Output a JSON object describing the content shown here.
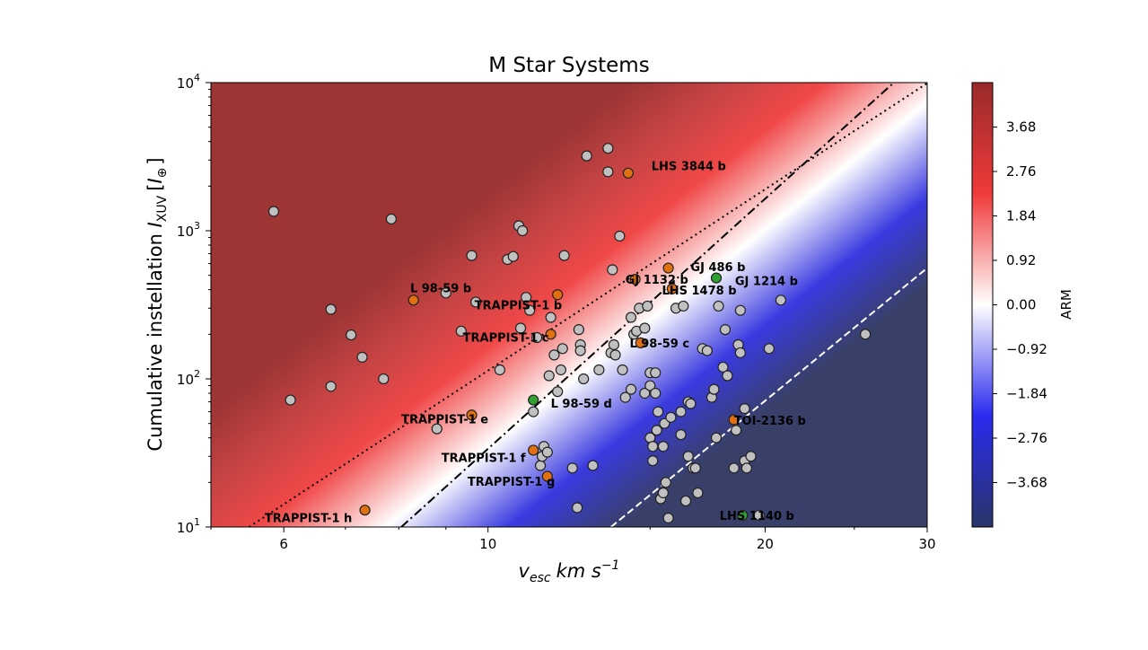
{
  "chart_data": {
    "type": "scatter",
    "title": "M Star Systems",
    "xlabel": "v_esc km s^-1",
    "xlabel_parts": {
      "var": "v",
      "sub": "esc",
      "unit": "km s",
      "exp": "−1"
    },
    "ylabel_parts": {
      "prefix": "Cumulative instellation ",
      "var": "I",
      "sub": "XUV",
      "bracket_open": "[",
      "unit": "I",
      "unit_sub": "⊕",
      "bracket_close": "]"
    },
    "x_scale": "log",
    "y_scale": "log",
    "xlim": [
      5,
      30
    ],
    "ylim": [
      10,
      10000
    ],
    "x_ticks": [
      {
        "value": 6,
        "label": "6"
      },
      {
        "value": 10,
        "label": "10"
      },
      {
        "value": 20,
        "label": "20"
      },
      {
        "value": 30,
        "label": "30"
      }
    ],
    "y_ticks": [
      {
        "value": 10,
        "base": "10",
        "exp": "1"
      },
      {
        "value": 100,
        "base": "10",
        "exp": "2"
      },
      {
        "value": 1000,
        "base": "10",
        "exp": "3"
      },
      {
        "value": 10000,
        "base": "10",
        "exp": "4"
      }
    ],
    "colorbar": {
      "label": "ARM",
      "range": [
        -4.6,
        4.6
      ],
      "ticks": [
        "3.68",
        "2.76",
        "1.84",
        "0.92",
        "0.00",
        "−0.92",
        "−1.84",
        "−2.76",
        "−3.68"
      ],
      "tick_values": [
        3.68,
        2.76,
        1.84,
        0.92,
        0.0,
        -0.92,
        -1.84,
        -2.76,
        -3.68
      ],
      "colors": {
        "high": "#9a2a2a",
        "mid": "#ffffff",
        "low": "#2a3a8a"
      }
    },
    "lines": [
      {
        "style": "dashdot",
        "color": "#000000",
        "x": [
          8.05,
          27.6
        ],
        "y": [
          10,
          10000
        ]
      },
      {
        "style": "dotted",
        "color": "#000000",
        "x": [
          5.5,
          30
        ],
        "y": [
          10,
          9900
        ]
      },
      {
        "style": "dashed",
        "color": "#ffffff",
        "x": [
          13.6,
          30
        ],
        "y": [
          10,
          560
        ]
      }
    ],
    "series": [
      {
        "color": "#c0c0c0",
        "x": [
          5.85,
          6.1,
          6.75,
          6.75,
          7.1,
          7.3,
          7.7,
          7.85,
          8.8,
          9.0,
          9.35,
          9.6,
          9.7,
          10.3,
          10.5,
          10.65,
          10.8,
          10.85,
          10.9,
          11.0,
          11.1,
          11.2,
          11.3,
          11.4,
          11.45,
          11.5,
          11.6,
          11.65,
          11.7,
          11.8,
          11.9,
          12.0,
          12.05,
          12.1,
          12.35,
          12.5,
          12.55,
          12.6,
          12.6,
          12.7,
          12.8,
          13.0,
          13.2,
          13.5,
          13.5,
          13.6,
          13.65,
          13.7,
          13.75,
          13.9,
          14.0,
          14.1,
          14.3,
          14.3,
          14.4,
          14.5,
          14.6,
          14.8,
          14.8,
          14.9,
          15.0,
          15.0,
          15.0,
          15.1,
          15.1,
          15.2,
          15.2,
          15.25,
          15.3,
          15.4,
          15.5,
          15.5,
          15.55,
          15.6,
          15.7,
          15.8,
          16.0,
          16.2,
          16.2,
          16.3,
          16.4,
          16.5,
          16.5,
          16.6,
          16.7,
          16.8,
          16.9,
          17.1,
          17.3,
          17.5,
          17.6,
          17.7,
          17.8,
          18.0,
          18.1,
          18.2,
          18.5,
          18.6,
          18.7,
          18.8,
          18.8,
          19.0,
          19.0,
          19.1,
          19.3,
          19.7,
          20.2,
          20.8,
          25.7
        ],
        "y": [
          1350,
          72,
          295,
          89,
          198,
          140,
          100,
          1200,
          46,
          380,
          210,
          680,
          330,
          115,
          640,
          670,
          1080,
          220,
          1000,
          355,
          290,
          60,
          190,
          26,
          30,
          35,
          32,
          105,
          260,
          145,
          82,
          115,
          160,
          680,
          25,
          13.5,
          215,
          170,
          155,
          100,
          3200,
          26,
          115,
          3600,
          2500,
          150,
          545,
          170,
          145,
          920,
          115,
          75,
          85,
          260,
          200,
          210,
          300,
          80,
          220,
          310,
          90,
          40,
          110,
          28,
          35,
          80,
          110,
          45,
          60,
          15.5,
          35,
          17,
          50,
          20,
          11.5,
          55,
          300,
          42,
          60,
          310,
          15,
          30,
          70,
          68,
          25,
          25,
          17,
          160,
          155,
          75,
          85,
          40,
          310,
          120,
          215,
          105,
          25,
          45,
          170,
          290,
          150,
          28,
          63,
          25,
          30,
          12,
          160,
          340,
          200
        ]
      },
      {
        "color": "#e07010",
        "x": [
          7.35,
          8.3,
          9.6,
          11.2,
          11.6,
          11.7,
          11.9,
          14.2,
          14.45,
          14.65,
          15.7,
          15.85,
          18.5
        ],
        "y": [
          13,
          340,
          57,
          33,
          22,
          200,
          370,
          2450,
          470,
          175,
          560,
          405,
          53
        ]
      },
      {
        "color": "#30a030",
        "x": [
          11.2,
          17.7,
          18.9
        ],
        "y": [
          72,
          480,
          12
        ]
      }
    ],
    "annotations": [
      {
        "text": "TRAPPIST-1 h",
        "x": 5.72,
        "y": 10.8
      },
      {
        "text": "L 98-59 b",
        "x": 8.23,
        "y": 385
      },
      {
        "text": "TRAPPIST-1 b",
        "x": 9.67,
        "y": 295
      },
      {
        "text": "TRAPPIST-1 c",
        "x": 9.39,
        "y": 178
      },
      {
        "text": "TRAPPIST-1 e",
        "x": 8.05,
        "y": 50
      },
      {
        "text": "TRAPPIST-1 f",
        "x": 8.9,
        "y": 27.5
      },
      {
        "text": "TRAPPIST-1 g",
        "x": 9.5,
        "y": 19
      },
      {
        "text": "LHS 3844 b",
        "x": 15.05,
        "y": 2570
      },
      {
        "text": "GJ 486 b",
        "x": 16.6,
        "y": 535
      },
      {
        "text": "GJ 1132 b",
        "x": 14.1,
        "y": 440
      },
      {
        "text": "LHS 1478 b",
        "x": 15.45,
        "y": 370
      },
      {
        "text": "GJ 1214 b",
        "x": 18.55,
        "y": 430
      },
      {
        "text": "L 98-59 c",
        "x": 14.25,
        "y": 163
      },
      {
        "text": "L 98-59 d",
        "x": 11.7,
        "y": 64
      },
      {
        "text": "TOI-2136 b",
        "x": 18.5,
        "y": 49
      },
      {
        "text": "LHS 1140 b",
        "x": 17.85,
        "y": 11.2
      }
    ]
  }
}
